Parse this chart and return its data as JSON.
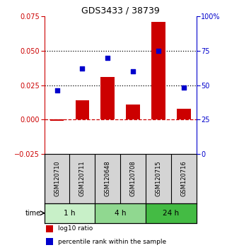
{
  "title": "GDS3433 / 38739",
  "samples": [
    "GSM120710",
    "GSM120711",
    "GSM120648",
    "GSM120708",
    "GSM120715",
    "GSM120716"
  ],
  "log10_ratio": [
    -0.001,
    0.014,
    0.031,
    0.011,
    0.071,
    0.008
  ],
  "percentile_rank": [
    46,
    62,
    70,
    60,
    75,
    48
  ],
  "time_groups": [
    {
      "label": "1 h",
      "indices": [
        0,
        1
      ],
      "color": "#c8f0c8"
    },
    {
      "label": "4 h",
      "indices": [
        2,
        3
      ],
      "color": "#90d890"
    },
    {
      "label": "24 h",
      "indices": [
        4,
        5
      ],
      "color": "#44bb44"
    }
  ],
  "bar_color": "#cc0000",
  "dot_color": "#0000cc",
  "left_ylim": [
    -0.025,
    0.075
  ],
  "right_ylim": [
    0,
    100
  ],
  "left_yticks": [
    -0.025,
    0,
    0.025,
    0.05,
    0.075
  ],
  "right_yticks": [
    0,
    25,
    50,
    75,
    100
  ],
  "right_yticklabels": [
    "0",
    "25",
    "50",
    "75",
    "100%"
  ],
  "hline_dots": [
    0.025,
    0.05
  ],
  "zero_line_color": "#cc0000",
  "background_color": "#ffffff",
  "plot_bg_color": "#ffffff",
  "label_red": "log10 ratio",
  "label_blue": "percentile rank within the sample",
  "time_label": "time",
  "sample_bg": "#d4d4d4"
}
